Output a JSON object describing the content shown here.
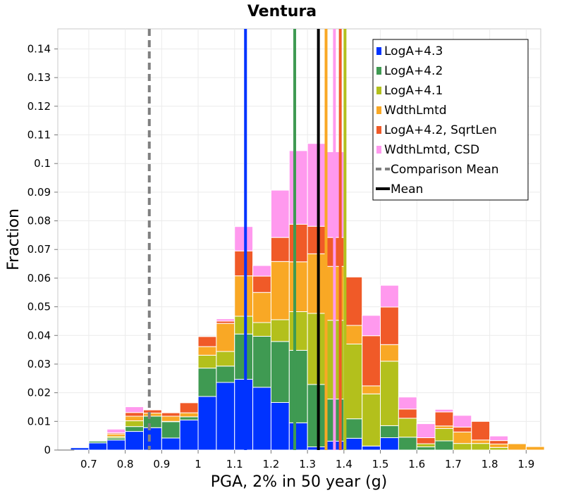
{
  "chart_data": {
    "type": "bar",
    "stacked": true,
    "title": "Ventura",
    "xlabel": "PGA, 2% in 50 year (g)",
    "ylabel": "Fraction",
    "xlim": [
      0.615,
      1.94
    ],
    "ylim": [
      0,
      0.147
    ],
    "grid": true,
    "legend_position": "top-right",
    "bin_width": 0.05,
    "x_ticks": [
      0.7,
      0.8,
      0.9,
      1,
      1.1,
      1.2,
      1.3,
      1.4,
      1.5,
      1.6,
      1.7,
      1.8,
      1.9
    ],
    "y_ticks": [
      0,
      0.01,
      0.02,
      0.03,
      0.04,
      0.05,
      0.06,
      0.07,
      0.08,
      0.09,
      0.1,
      0.11,
      0.12,
      0.13,
      0.14
    ],
    "x_tick_labels": [
      "0.7",
      "0.8",
      "0.9",
      "1",
      "1.1",
      "1.2",
      "1.3",
      "1.4",
      "1.5",
      "1.6",
      "1.7",
      "1.8",
      "1.9"
    ],
    "y_tick_labels": [
      "0",
      "0.01",
      "0.02",
      "0.03",
      "0.04",
      "0.05",
      "0.06",
      "0.07",
      "0.08",
      "0.09",
      "0.1",
      "0.11",
      "0.12",
      "0.13",
      "0.14"
    ],
    "bins": [
      0.625,
      0.675,
      0.725,
      0.775,
      0.825,
      0.875,
      0.925,
      0.975,
      1.025,
      1.075,
      1.125,
      1.175,
      1.225,
      1.275,
      1.325,
      1.375,
      1.425,
      1.475,
      1.525,
      1.575,
      1.625,
      1.675,
      1.725,
      1.775,
      1.825,
      1.875,
      1.925
    ],
    "series": [
      {
        "name": "LogA+4.3",
        "color": "#0033ff",
        "values": [
          0,
          0.0008,
          0.0025,
          0.0035,
          0.0065,
          0.0078,
          0.0042,
          0.0105,
          0.0187,
          0.0236,
          0.0247,
          0.0219,
          0.0166,
          0.0095,
          0.0011,
          0.0031,
          0.0041,
          0.0014,
          0.0043,
          0,
          0,
          0,
          0,
          0,
          0,
          0,
          0
        ]
      },
      {
        "name": "LogA+4.2",
        "color": "#3f9a52",
        "values": [
          0,
          0,
          0.0006,
          0.0007,
          0.0017,
          0.004,
          0.0057,
          0.0011,
          0.0099,
          0.0057,
          0.0158,
          0.0178,
          0.0213,
          0.0253,
          0.0218,
          0.0147,
          0.0068,
          0,
          0.0042,
          0.0045,
          0.0011,
          0.0032,
          0,
          0,
          0,
          0,
          0
        ]
      },
      {
        "name": "LogA+4.1",
        "color": "#b3c01c",
        "values": [
          0,
          0,
          0,
          0.0005,
          0.002,
          0,
          0.0001,
          0,
          0.0045,
          0.0051,
          0.0062,
          0.0048,
          0.0076,
          0.0135,
          0.0248,
          0.0275,
          0.0261,
          0.0182,
          0.0225,
          0.0066,
          0.0011,
          0.0043,
          0.0023,
          0.0023,
          0.0009,
          0,
          0
        ]
      },
      {
        "name": "WdthLmtd",
        "color": "#f9a825",
        "values": [
          0,
          0,
          0,
          0.0009,
          0.0016,
          0.0011,
          0.0018,
          0.0014,
          0.003,
          0.0098,
          0.0141,
          0.0105,
          0.0203,
          0.0174,
          0.0208,
          0.0188,
          0.0065,
          0.0028,
          0.0058,
          0,
          0,
          0.0009,
          0.004,
          0.0012,
          0.0012,
          0.0022,
          0.0012
        ]
      },
      {
        "name": "LogA+4.2, SqrtLen",
        "color": "#f05a28",
        "values": [
          0,
          0,
          0,
          0.0004,
          0.0013,
          0.0011,
          0.0012,
          0.0035,
          0.0035,
          0.0008,
          0.0087,
          0.0057,
          0.0084,
          0.0131,
          0.0096,
          0.0101,
          0.0169,
          0.0175,
          0.0131,
          0.0032,
          0.0021,
          0.0049,
          0.0017,
          0.0065,
          0.0012,
          0,
          0
        ]
      },
      {
        "name": "WdthLmtd, CSD",
        "color": "#ff99ee",
        "values": [
          0,
          0,
          0,
          0.0013,
          0.002,
          0,
          0,
          0,
          0,
          0.0008,
          0.0085,
          0.0037,
          0.0165,
          0.0257,
          0.0289,
          0.0299,
          0,
          0.0071,
          0.0076,
          0.0042,
          0.0049,
          0.0009,
          0.0041,
          0,
          0.0016,
          0,
          0
        ]
      }
    ],
    "vertical_lines": [
      {
        "name": "LogA+4.3",
        "x": 1.13,
        "color": "#0033ff",
        "dashed": false
      },
      {
        "name": "LogA+4.2",
        "x": 1.265,
        "color": "#3f9a52",
        "dashed": false
      },
      {
        "name": "LogA+4.1",
        "x": 1.403,
        "color": "#b3c01c",
        "dashed": false
      },
      {
        "name": "WdthLmtd",
        "x": 1.351,
        "color": "#f9a825",
        "dashed": false
      },
      {
        "name": "LogA+4.2, SqrtLen",
        "x": 1.39,
        "color": "#f05a28",
        "dashed": false
      },
      {
        "name": "WdthLmtd, CSD",
        "x": 1.374,
        "color": "#ff99ee",
        "dashed": false
      },
      {
        "name": "Comparison Mean",
        "x": 0.866,
        "color": "#808080",
        "dashed": true
      },
      {
        "name": "Mean",
        "x": 1.33,
        "color": "#000000",
        "dashed": false
      }
    ],
    "legend": [
      {
        "label": "LogA+4.3",
        "color": "#0033ff",
        "kind": "box"
      },
      {
        "label": "LogA+4.2",
        "color": "#3f9a52",
        "kind": "box"
      },
      {
        "label": "LogA+4.1",
        "color": "#b3c01c",
        "kind": "box"
      },
      {
        "label": "WdthLmtd",
        "color": "#f9a825",
        "kind": "box"
      },
      {
        "label": "LogA+4.2, SqrtLen",
        "color": "#f05a28",
        "kind": "box"
      },
      {
        "label": "WdthLmtd, CSD",
        "color": "#ff99ee",
        "kind": "box"
      },
      {
        "label": "Comparison Mean",
        "color": "#808080",
        "kind": "dashed-line"
      },
      {
        "label": "Mean",
        "color": "#000000",
        "kind": "line"
      }
    ]
  }
}
